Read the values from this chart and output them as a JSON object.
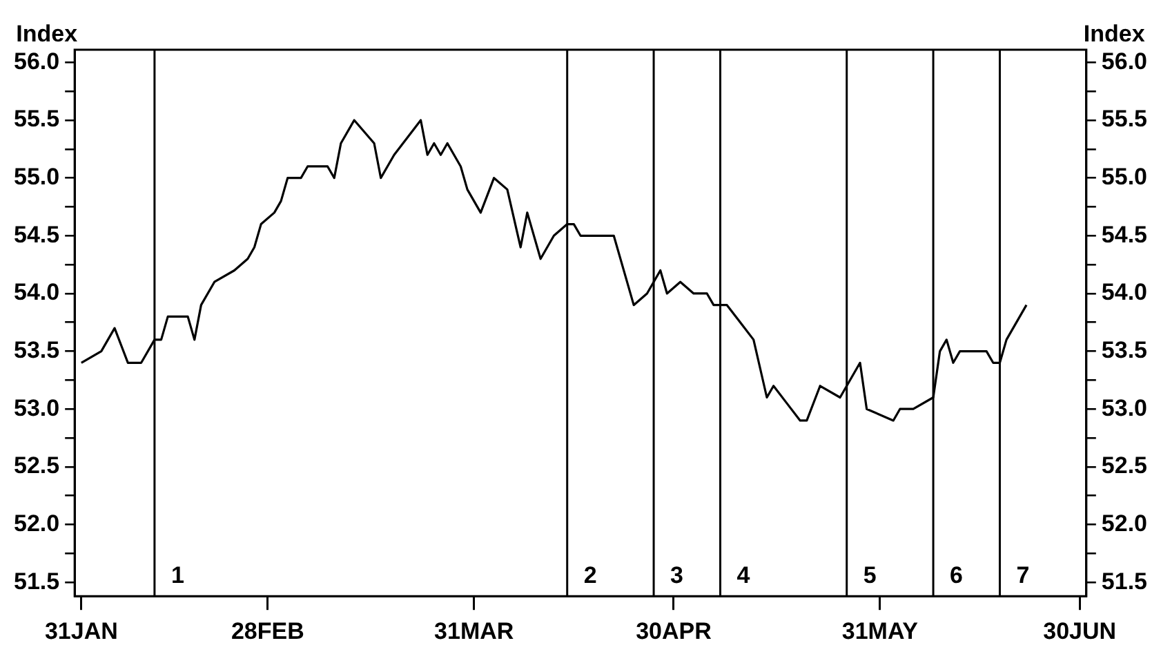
{
  "chart_data": {
    "type": "line",
    "ylabel": "Index",
    "y2label": "Index",
    "legend": false,
    "grid": false,
    "marker": "none",
    "line_style": "solid",
    "x": [
      "--01-31",
      "--02-03",
      "--02-05",
      "--02-07",
      "--02-09",
      "--02-11",
      "--02-12",
      "--02-13",
      "--02-16",
      "--02-17",
      "--02-18",
      "--02-20",
      "--02-23",
      "--02-25",
      "--02-26",
      "--02-27",
      "--03-01",
      "--03-02",
      "--03-03",
      "--03-05",
      "--03-06",
      "--03-09",
      "--03-10",
      "--03-11",
      "--03-13",
      "--03-16",
      "--03-17",
      "--03-19",
      "--03-23",
      "--03-24",
      "--03-25",
      "--03-26",
      "--03-27",
      "--03-29",
      "--03-30",
      "--04-01",
      "--04-03",
      "--04-05",
      "--04-07",
      "--04-08",
      "--04-10",
      "--04-12",
      "--04-14",
      "--04-15",
      "--04-16",
      "--04-21",
      "--04-24",
      "--04-26",
      "--04-28",
      "--04-29",
      "--05-01",
      "--05-03",
      "--05-05",
      "--05-06",
      "--05-08",
      "--05-10",
      "--05-12",
      "--05-14",
      "--05-15",
      "--05-17",
      "--05-19",
      "--05-20",
      "--05-22",
      "--05-25",
      "--05-26",
      "--05-28",
      "--05-29",
      "--06-02",
      "--06-03",
      "--06-05",
      "--06-08",
      "--06-09",
      "--06-10",
      "--06-11",
      "--06-12",
      "--06-16",
      "--06-17",
      "--06-18",
      "--06-19",
      "--06-22"
    ],
    "series": [
      {
        "color": "#000000",
        "values": [
          53.4,
          53.5,
          53.7,
          53.4,
          53.4,
          53.6,
          53.6,
          53.8,
          53.8,
          53.6,
          53.9,
          54.1,
          54.2,
          54.3,
          54.4,
          54.6,
          54.7,
          54.8,
          55.0,
          55.0,
          55.1,
          55.1,
          55.0,
          55.3,
          55.5,
          55.3,
          55.0,
          55.2,
          55.5,
          55.2,
          55.3,
          55.2,
          55.3,
          55.1,
          54.9,
          54.7,
          55.0,
          54.9,
          54.4,
          54.7,
          54.3,
          54.5,
          54.6,
          54.6,
          54.5,
          54.5,
          53.9,
          54.0,
          54.2,
          54.0,
          54.1,
          54.0,
          54.0,
          53.9,
          53.9,
          53.75,
          53.6,
          53.1,
          53.2,
          53.05,
          52.9,
          52.9,
          53.2,
          53.1,
          53.2,
          53.4,
          53.0,
          52.9,
          53.0,
          53.0,
          53.1,
          53.5,
          53.6,
          53.4,
          53.5,
          53.5,
          53.4,
          53.4,
          53.6,
          53.9
        ]
      }
    ],
    "xlim": [
      "--01-30",
      "--07-01"
    ],
    "xticks": [
      {
        "value": "--01-31",
        "label": "31JAN"
      },
      {
        "value": "--02-28",
        "label": "28FEB"
      },
      {
        "value": "--03-31",
        "label": "31MAR"
      },
      {
        "value": "--04-30",
        "label": "30APR"
      },
      {
        "value": "--05-31",
        "label": "31MAY"
      },
      {
        "value": "--06-30",
        "label": "30JUN"
      }
    ],
    "ylim": [
      51.38,
      56.11
    ],
    "yticks": [
      {
        "value": 51.5,
        "label": "51.5"
      },
      {
        "value": 51.75,
        "label": null
      },
      {
        "value": 52,
        "label": "52.0"
      },
      {
        "value": 52.25,
        "label": null
      },
      {
        "value": 52.5,
        "label": "52.5"
      },
      {
        "value": 52.75,
        "label": null
      },
      {
        "value": 53,
        "label": "53.0"
      },
      {
        "value": 53.25,
        "label": null
      },
      {
        "value": 53.5,
        "label": "53.5"
      },
      {
        "value": 53.75,
        "label": null
      },
      {
        "value": 54,
        "label": "54.0"
      },
      {
        "value": 54.25,
        "label": null
      },
      {
        "value": 54.5,
        "label": "54.5"
      },
      {
        "value": 54.75,
        "label": null
      },
      {
        "value": 55,
        "label": "55.0"
      },
      {
        "value": 55.25,
        "label": null
      },
      {
        "value": 55.5,
        "label": "55.5"
      },
      {
        "value": 55.75,
        "label": null
      },
      {
        "value": 56,
        "label": "56.0"
      }
    ],
    "y2lim": [
      51.38,
      56.11
    ],
    "y2ticks": [
      {
        "value": 51.5,
        "label": "51.5"
      },
      {
        "value": 51.75,
        "label": null
      },
      {
        "value": 52,
        "label": "52.0"
      },
      {
        "value": 52.25,
        "label": null
      },
      {
        "value": 52.5,
        "label": "52.5"
      },
      {
        "value": 52.75,
        "label": null
      },
      {
        "value": 53,
        "label": "53.0"
      },
      {
        "value": 53.25,
        "label": null
      },
      {
        "value": 53.5,
        "label": "53.5"
      },
      {
        "value": 53.75,
        "label": null
      },
      {
        "value": 54,
        "label": "54.0"
      },
      {
        "value": 54.25,
        "label": null
      },
      {
        "value": 54.5,
        "label": "54.5"
      },
      {
        "value": 54.75,
        "label": null
      },
      {
        "value": 55,
        "label": "55.0"
      },
      {
        "value": 55.25,
        "label": null
      },
      {
        "value": 55.5,
        "label": "55.5"
      },
      {
        "value": 55.75,
        "label": null
      },
      {
        "value": 56,
        "label": "56.0"
      }
    ],
    "ref_lines": [
      {
        "axis": "x",
        "value": "--02-11"
      },
      {
        "axis": "x",
        "value": "--04-14"
      },
      {
        "axis": "x",
        "value": "--04-27"
      },
      {
        "axis": "x",
        "value": "--05-07"
      },
      {
        "axis": "x",
        "value": "--05-26"
      },
      {
        "axis": "x",
        "value": "--06-08"
      },
      {
        "axis": "x",
        "value": "--06-18"
      }
    ],
    "annotations": [
      {
        "text": "1",
        "x": "--02-11",
        "y": 51.45
      },
      {
        "text": "2",
        "x": "--04-14",
        "y": 51.45
      },
      {
        "text": "3",
        "x": "--04-27",
        "y": 51.45
      },
      {
        "text": "4",
        "x": "--05-07",
        "y": 51.45
      },
      {
        "text": "5",
        "x": "--05-26",
        "y": 51.45
      },
      {
        "text": "6",
        "x": "--06-08",
        "y": 51.45
      },
      {
        "text": "7",
        "x": "--06-18",
        "y": 51.45
      }
    ]
  }
}
